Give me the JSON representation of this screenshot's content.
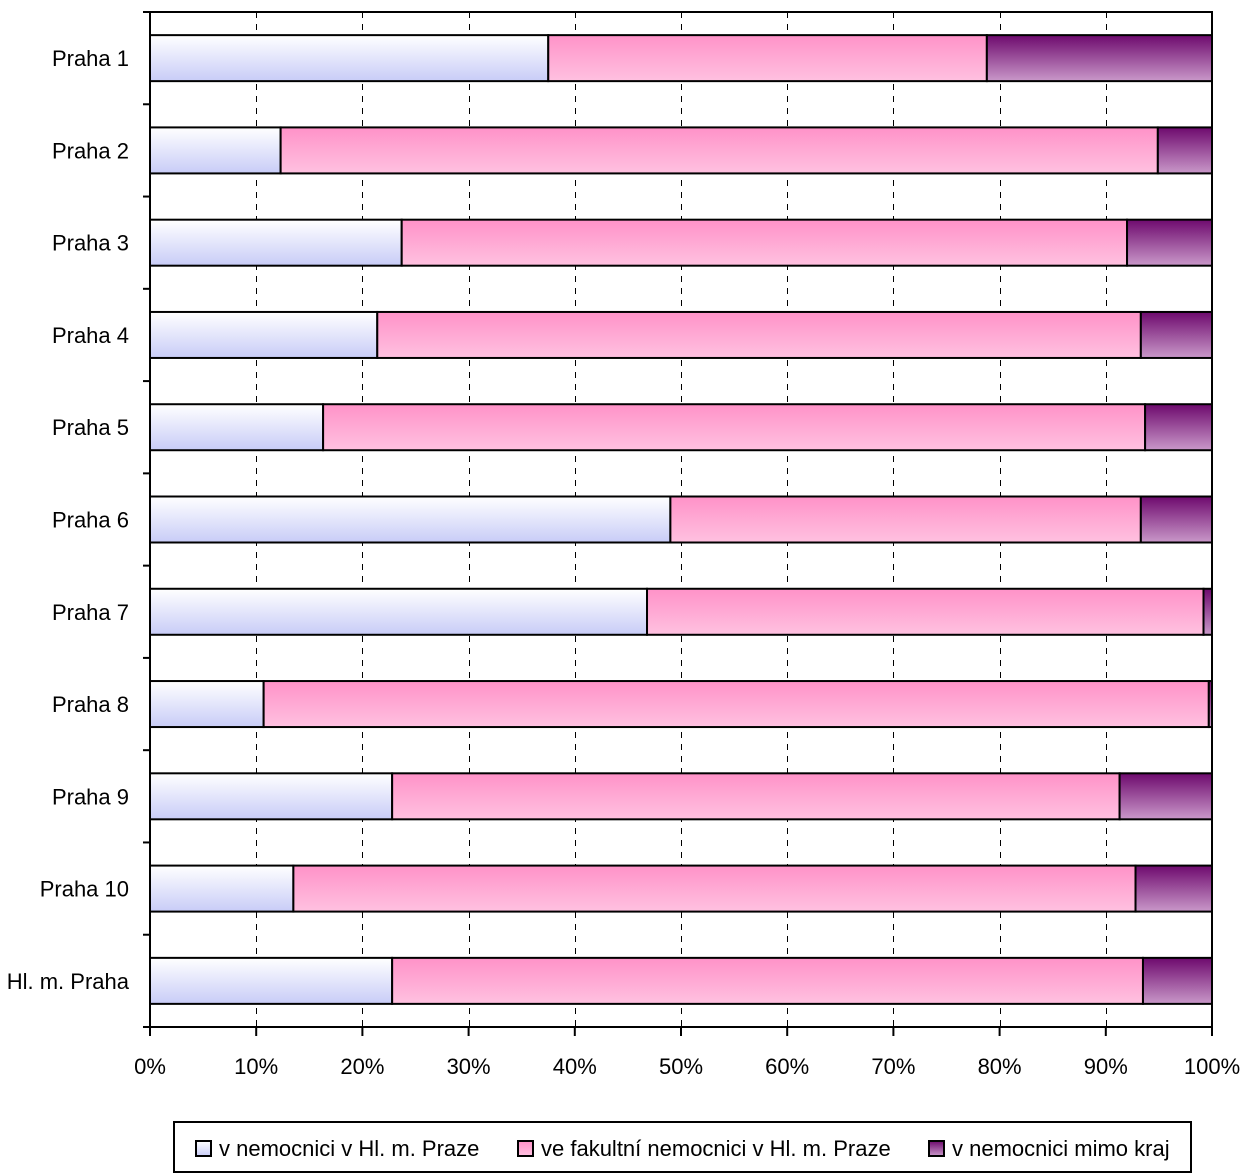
{
  "chart_data": {
    "type": "bar",
    "orientation": "horizontal",
    "stacked": "percent",
    "categories": [
      "Praha 1",
      "Praha 2",
      "Praha 3",
      "Praha 4",
      "Praha 5",
      "Praha 6",
      "Praha 7",
      "Praha 8",
      "Praha 9",
      "Praha 10",
      "Hl. m. Praha"
    ],
    "series": [
      {
        "name": "v nemocnici v Hl. m. Praze",
        "color_top": "#ffffff",
        "color_bottom": "#c8ccf7",
        "values": [
          37.5,
          12.3,
          23.7,
          21.4,
          16.3,
          49.0,
          46.8,
          10.7,
          22.8,
          13.5,
          22.8
        ]
      },
      {
        "name": "ve fakultní nemocnici v Hl. m. Praze",
        "color_top": "#ff92c8",
        "color_bottom": "#ffc1e0",
        "values": [
          41.3,
          82.6,
          68.3,
          71.9,
          77.4,
          44.3,
          52.4,
          89.0,
          68.5,
          79.3,
          70.7
        ]
      },
      {
        "name": "v nemocnici mimo kraj",
        "color_top": "#6e0a6e",
        "color_bottom": "#c998c9",
        "values": [
          21.2,
          5.1,
          8.0,
          6.7,
          6.3,
          6.7,
          0.8,
          0.3,
          8.7,
          7.2,
          6.5
        ]
      }
    ],
    "xlim": [
      0,
      100
    ],
    "x_ticks": [
      "0%",
      "10%",
      "20%",
      "30%",
      "40%",
      "50%",
      "60%",
      "70%",
      "80%",
      "90%",
      "100%"
    ],
    "grid": "vertical dashed",
    "legend_position": "bottom"
  }
}
